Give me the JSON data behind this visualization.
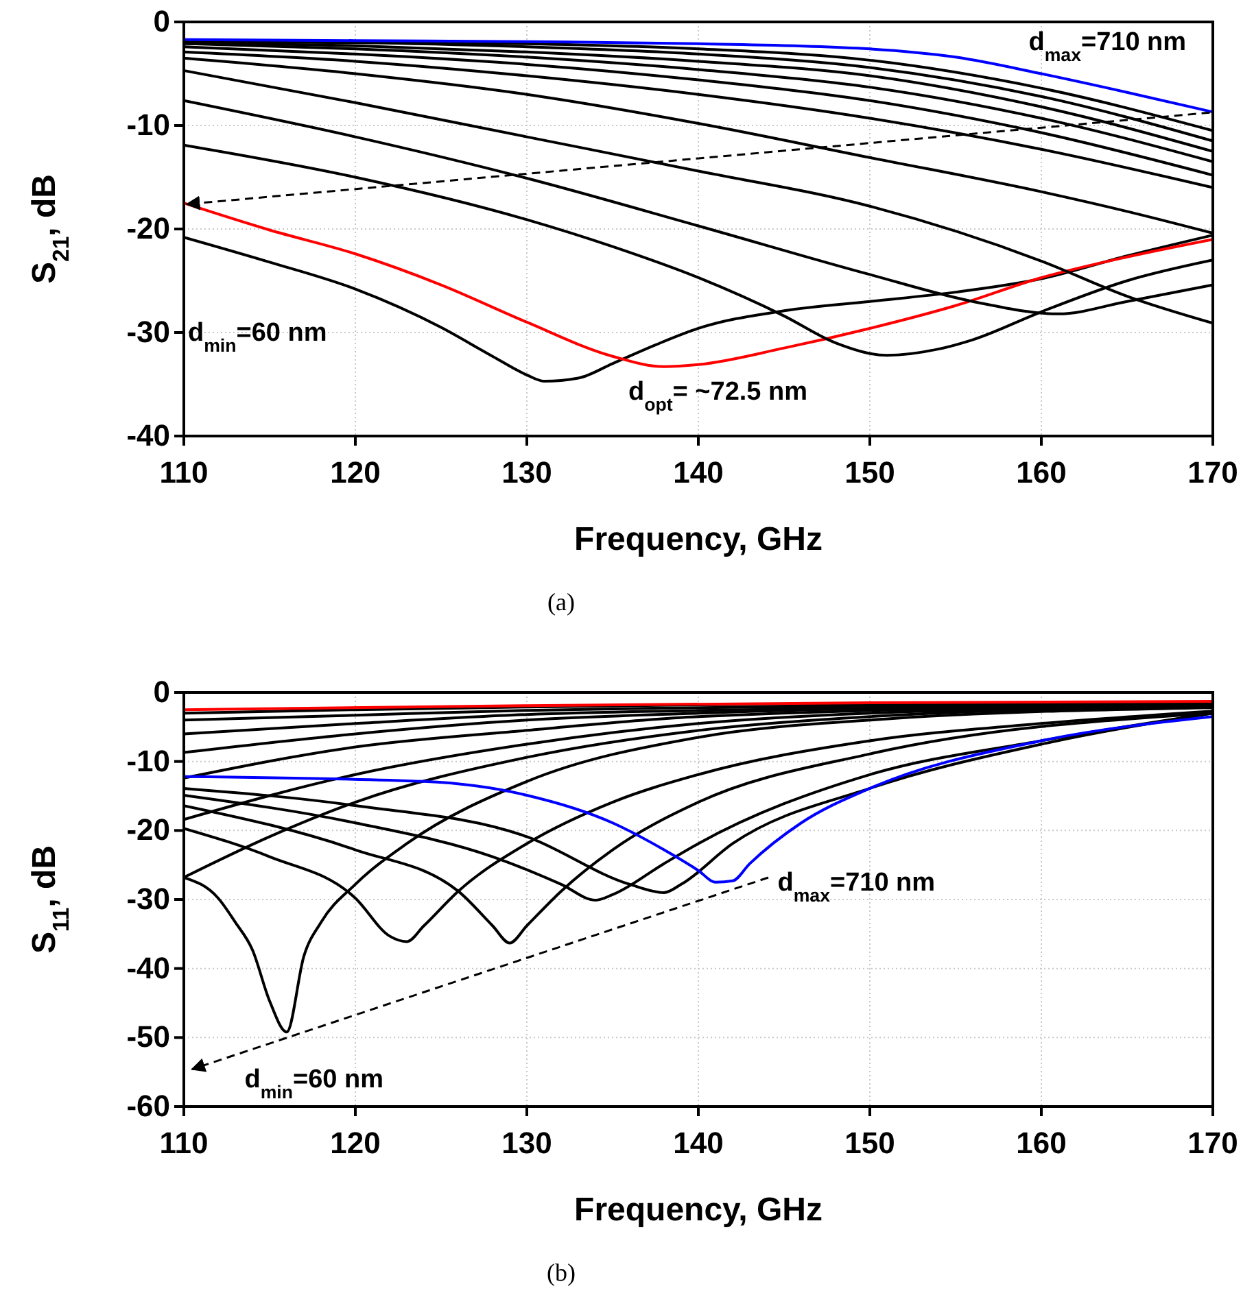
{
  "chart_data": [
    {
      "type": "line",
      "xlabel": "Frequency, GHz",
      "ylabel": "S$_{21}$, dB",
      "xlim": [
        110,
        170
      ],
      "xticks": [
        110,
        120,
        130,
        140,
        150,
        160,
        170
      ],
      "ylim": [
        -40,
        0
      ],
      "yticks": [
        -40,
        -30,
        -20,
        -10,
        0
      ],
      "grid": true,
      "marker": "none",
      "line_style": "solid",
      "annotations": [
        "d$_{max}$=710 nm",
        "d$_{min}$=60 nm",
        "d$_{opt}$= ~72.5 nm",
        "(a)"
      ],
      "series": [
        {
          "color": "#000000",
          "x": [
            110,
            115,
            120,
            125,
            128,
            130,
            131,
            133,
            135,
            137.5,
            140,
            145,
            150,
            155,
            160,
            165,
            170
          ],
          "values": [
            -20.8,
            -23.2,
            -25.8,
            -29.5,
            -32.3,
            -34.1,
            -34.7,
            -34.4,
            -33,
            -31.2,
            -29.6,
            -27.9,
            -27,
            -26.1,
            -24.8,
            -22.6,
            -20.6
          ]
        },
        {
          "color": "#ff0000",
          "x": [
            110,
            115,
            120,
            125,
            130,
            135,
            138,
            140,
            145,
            150,
            155,
            160,
            165,
            170
          ],
          "values": [
            -17.5,
            -20.1,
            -22.4,
            -25.4,
            -29,
            -32.3,
            -33.3,
            -33.1,
            -31.5,
            -29.6,
            -27.4,
            -24.7,
            -22.7,
            -21
          ]
        },
        {
          "color": "#000000",
          "x": [
            110,
            120,
            130,
            135,
            140,
            145,
            148,
            151,
            154,
            156,
            160,
            165,
            170
          ],
          "values": [
            -11.9,
            -15,
            -19.1,
            -21.7,
            -24.7,
            -28.4,
            -31,
            -32.2,
            -31.6,
            -30.7,
            -28,
            -25,
            -23
          ]
        },
        {
          "color": "#000000",
          "x": [
            110,
            120,
            130,
            140,
            150,
            156,
            161,
            165,
            170
          ],
          "values": [
            -7.6,
            -11.1,
            -15.1,
            -19.7,
            -24.4,
            -27,
            -28.2,
            -27,
            -25.4
          ]
        },
        {
          "color": "#000000",
          "x": [
            110,
            120,
            130,
            140,
            150,
            160,
            165,
            170
          ],
          "values": [
            -4.7,
            -7.8,
            -11.1,
            -14.4,
            -17.8,
            -23.1,
            -26.5,
            -29.1
          ]
        },
        {
          "color": "#000000",
          "x": [
            110,
            120,
            130,
            140,
            150,
            160,
            165,
            170
          ],
          "values": [
            -3.5,
            -5,
            -7,
            -9.8,
            -13.1,
            -16.4,
            -18.3,
            -20.4
          ]
        },
        {
          "color": "#000000",
          "x": [
            110,
            120,
            130,
            140,
            150,
            160,
            170
          ],
          "values": [
            -2.9,
            -3.8,
            -5.2,
            -7,
            -9.3,
            -12.3,
            -16
          ]
        },
        {
          "color": "#000000",
          "x": [
            110,
            120,
            130,
            140,
            150,
            160,
            170
          ],
          "values": [
            -2.4,
            -3.1,
            -4.1,
            -5.6,
            -7.6,
            -10.7,
            -14.8
          ]
        },
        {
          "color": "#000000",
          "x": [
            110,
            120,
            130,
            140,
            150,
            160,
            170
          ],
          "values": [
            -2.1,
            -2.6,
            -3.4,
            -4.6,
            -6.3,
            -9.3,
            -13.5
          ]
        },
        {
          "color": "#000000",
          "x": [
            110,
            120,
            130,
            140,
            150,
            160,
            170
          ],
          "values": [
            -2.0,
            -2.3,
            -2.9,
            -3.8,
            -5.2,
            -8.2,
            -12.5
          ]
        },
        {
          "color": "#000000",
          "x": [
            110,
            120,
            130,
            140,
            150,
            160,
            170
          ],
          "values": [
            -1.9,
            -2.0,
            -2.4,
            -3.1,
            -4.4,
            -7.2,
            -11.5
          ]
        },
        {
          "color": "#000000",
          "x": [
            110,
            120,
            130,
            140,
            150,
            160,
            170
          ],
          "values": [
            -1.8,
            -1.9,
            -2.1,
            -2.6,
            -3.7,
            -6.4,
            -10.5
          ]
        },
        {
          "color": "#0000ff",
          "x": [
            110,
            120,
            130,
            140,
            150,
            155,
            160,
            165,
            170
          ],
          "values": [
            -1.7,
            -1.8,
            -1.9,
            -2.1,
            -2.6,
            -3.4,
            -5.0,
            -6.8,
            -8.7
          ]
        }
      ]
    },
    {
      "type": "line",
      "xlabel": "Frequency, GHz",
      "ylabel": "S$_{11}$, dB",
      "xlim": [
        110,
        170
      ],
      "xticks": [
        110,
        120,
        130,
        140,
        150,
        160,
        170
      ],
      "ylim": [
        -60,
        0
      ],
      "yticks": [
        -60,
        -50,
        -40,
        -30,
        -20,
        -10,
        0
      ],
      "grid": true,
      "marker": "none",
      "line_style": "solid",
      "annotations": [
        "d$_{max}$=710 nm",
        "d$_{min}$=60 nm",
        "(b)"
      ],
      "series": [
        {
          "color": "#000000",
          "x": [
            110,
            120,
            130,
            140,
            170
          ],
          "values": [
            -3.0,
            -2.5,
            -2.1,
            -1.8,
            -1.4
          ]
        },
        {
          "color": "#000000",
          "x": [
            110,
            120,
            130,
            140,
            170
          ],
          "values": [
            -4.0,
            -3.3,
            -2.6,
            -2.2,
            -1.5
          ]
        },
        {
          "color": "#000000",
          "x": [
            110,
            120,
            130,
            140,
            170
          ],
          "values": [
            -6.0,
            -4.5,
            -3.2,
            -2.6,
            -1.5
          ]
        },
        {
          "color": "#000000",
          "x": [
            110,
            120,
            130,
            140,
            170
          ],
          "values": [
            -8.7,
            -6.0,
            -4.0,
            -3.0,
            -1.6
          ]
        },
        {
          "color": "#000000",
          "x": [
            110,
            120,
            130,
            140,
            170
          ],
          "values": [
            -12.4,
            -7.9,
            -5.5,
            -3.5,
            -1.8
          ]
        },
        {
          "color": "#000000",
          "x": [
            110,
            120,
            130,
            140,
            150,
            170
          ],
          "values": [
            -18.4,
            -11.9,
            -7.5,
            -4.5,
            -3.0,
            -2.0
          ]
        },
        {
          "color": "#000000",
          "x": [
            110,
            115,
            120,
            130,
            140,
            150,
            170
          ],
          "values": [
            -26.8,
            -20.9,
            -15.9,
            -9.4,
            -5.5,
            -3.5,
            -2.0
          ]
        },
        {
          "color": "#000000",
          "x": [
            110,
            112,
            113,
            114,
            115,
            116,
            117,
            118,
            120,
            123,
            130,
            140,
            150,
            170
          ],
          "values": [
            -26.8,
            -29.8,
            -33.3,
            -37.3,
            -44.7,
            -49.2,
            -38.2,
            -33.3,
            -27.8,
            -21.9,
            -12.9,
            -6.5,
            -4.0,
            -2.2
          ]
        },
        {
          "color": "#000000",
          "x": [
            110,
            115,
            120,
            122,
            123,
            124,
            126,
            130,
            135,
            140,
            150,
            160,
            170
          ],
          "values": [
            -19.7,
            -23.8,
            -29.8,
            -35.3,
            -36.1,
            -33.8,
            -28.8,
            -21.9,
            -15.9,
            -11.9,
            -7.0,
            -4.5,
            -2.7
          ]
        },
        {
          "color": "#000000",
          "x": [
            110,
            120,
            126,
            128,
            129,
            130,
            132,
            135,
            140,
            150,
            170
          ],
          "values": [
            -16.4,
            -22.8,
            -28.8,
            -33.8,
            -36.3,
            -33.8,
            -28.8,
            -22.8,
            -15.9,
            -8.9,
            -3.0
          ]
        },
        {
          "color": "#000000",
          "x": [
            110,
            120,
            128,
            132,
            134,
            135,
            138,
            140,
            150,
            160,
            170
          ],
          "values": [
            -14.9,
            -18.9,
            -23.8,
            -27.8,
            -30.1,
            -29.3,
            -24.8,
            -21.9,
            -11.9,
            -7.0,
            -3.0
          ]
        },
        {
          "color": "#000000",
          "x": [
            110,
            120,
            130,
            136,
            138,
            139,
            142,
            150,
            160,
            170
          ],
          "values": [
            -13.9,
            -16.4,
            -20.9,
            -27.8,
            -29.0,
            -27.8,
            -21.9,
            -13.9,
            -7.5,
            -3.0
          ]
        },
        {
          "color": "#0000ff",
          "x": [
            110,
            124,
            130,
            135,
            138,
            140,
            141,
            142,
            143,
            146,
            150,
            160,
            170
          ],
          "values": [
            -12.2,
            -12.9,
            -14.9,
            -18.9,
            -22.8,
            -25.8,
            -27.5,
            -27.3,
            -24.8,
            -18.9,
            -13.9,
            -7.0,
            -3.5
          ]
        },
        {
          "color": "#ff0000",
          "x": [
            110,
            130,
            150,
            170
          ],
          "values": [
            -2.5,
            -1.9,
            -1.5,
            -1.3
          ]
        }
      ]
    }
  ]
}
